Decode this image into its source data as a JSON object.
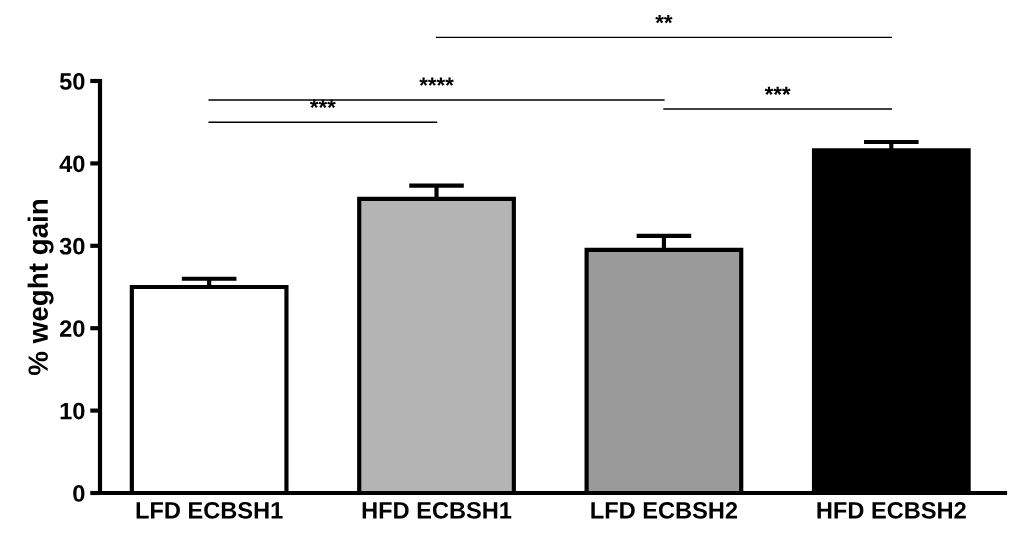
{
  "chart_data": {
    "type": "bar",
    "ylabel": "% weght gain",
    "categories": [
      "LFD ECBSH1",
      "HFD ECBSH1",
      "LFD ECBSH2",
      "HFD ECBSH2"
    ],
    "values": [
      25.0,
      35.7,
      29.5,
      41.6
    ],
    "colors": [
      "#ffffff",
      "#b4b4b4",
      "#9a9a9a",
      "#000000"
    ],
    "errors": [
      1.0,
      1.6,
      1.7,
      1.0
    ],
    "ylim": [
      0,
      50
    ],
    "yticks": [
      0,
      10,
      20,
      30,
      40,
      50
    ],
    "grid": false,
    "legend": false,
    "annotations": [
      "***",
      "****",
      "**",
      "***"
    ]
  }
}
